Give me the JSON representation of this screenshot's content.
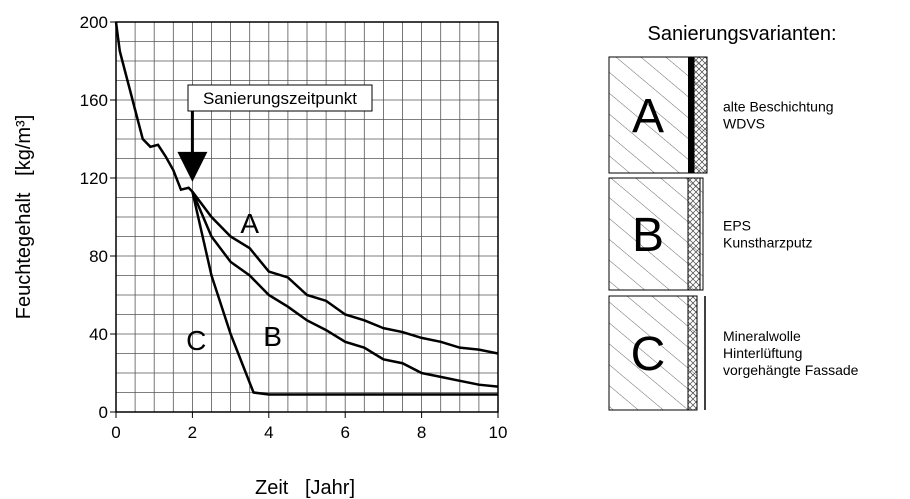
{
  "chart_data": {
    "type": "line",
    "x_label": "Zeit   [Jahr]",
    "y_label": "Feuchtegehalt   [kg/m³]",
    "xlim": [
      0,
      10
    ],
    "ylim": [
      0,
      200
    ],
    "xticks": [
      0,
      2,
      4,
      6,
      8,
      10
    ],
    "yticks": [
      0,
      40,
      80,
      120,
      160,
      200
    ],
    "x_grid": [
      0,
      0.5,
      1,
      1.5,
      2,
      2.5,
      3,
      3.5,
      4,
      4.5,
      5,
      5.5,
      6,
      6.5,
      7,
      7.5,
      8,
      8.5,
      9,
      9.5,
      10
    ],
    "y_grid": [
      0,
      10,
      20,
      30,
      40,
      50,
      60,
      70,
      80,
      90,
      100,
      110,
      120,
      130,
      140,
      150,
      160,
      170,
      180,
      190,
      200
    ],
    "color": "#000000",
    "series": [
      {
        "x": [
          0,
          0.1,
          0.3,
          0.5,
          0.7,
          0.9,
          1.1,
          1.3,
          1.5,
          1.7,
          1.9,
          2
        ],
        "values": [
          200,
          185,
          170,
          155,
          140,
          136,
          137,
          131,
          124,
          114,
          115,
          113
        ]
      },
      {
        "name": "A",
        "x": [
          2,
          2.5,
          3,
          3.5,
          4,
          4.5,
          5,
          5.5,
          6,
          6.5,
          7,
          7.5,
          8,
          8.5,
          9,
          9.5,
          10
        ],
        "values": [
          113,
          100,
          90,
          84,
          72,
          69,
          60,
          57,
          50,
          47,
          43,
          41,
          38,
          36,
          33,
          32,
          30
        ],
        "label_x": 3.5,
        "label_y": 97
      },
      {
        "name": "B",
        "x": [
          2,
          2.5,
          3,
          3.5,
          4,
          4.5,
          5,
          5.5,
          6,
          6.5,
          7,
          7.5,
          8,
          8.5,
          9,
          9.5,
          10
        ],
        "values": [
          113,
          90,
          77,
          70,
          60,
          54,
          47,
          42,
          36,
          33,
          27,
          25,
          20,
          18,
          16,
          14,
          13
        ],
        "label_x": 4.1,
        "label_y": 39
      },
      {
        "name": "C",
        "x": [
          2,
          2.5,
          3,
          3.3,
          3.6,
          4,
          10
        ],
        "values": [
          113,
          70,
          40,
          25,
          10,
          9,
          9
        ],
        "label_x": 2.1,
        "label_y": 37
      }
    ],
    "annotation": {
      "text": "Sanierungszeitpunkt",
      "x": 2,
      "y": 118
    }
  },
  "panel": {
    "title": "Sanierungsvarianten:",
    "variants": [
      {
        "label": "A",
        "lines": [
          "alte Beschichtung",
          "WDVS"
        ]
      },
      {
        "label": "B",
        "lines": [
          "EPS",
          "Kunstharzputz"
        ]
      },
      {
        "label": "C",
        "lines": [
          "Mineralwolle",
          "Hinterlüftung",
          "vorgehängte Fassade"
        ]
      }
    ]
  }
}
